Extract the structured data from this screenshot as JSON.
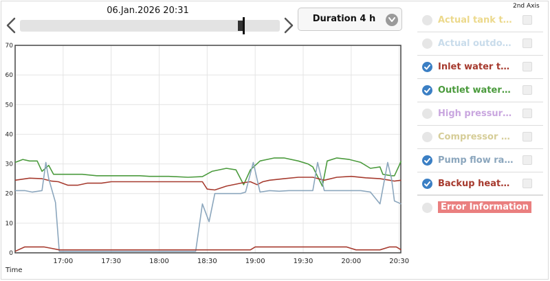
{
  "header": {
    "timestamp": "06.Jan.2026 20:31",
    "duration_label": "Duration 4 h"
  },
  "timeline": {
    "position": 0.86
  },
  "legend": {
    "axis_header": "2nd Axis",
    "items": [
      {
        "label": "Actual tank te...",
        "color": "#ecd98c",
        "checked": false
      },
      {
        "label": "Actual outdoo...",
        "color": "#c9dceb",
        "checked": false
      },
      {
        "label": "Inlet water te...",
        "color": "#a63a2e",
        "checked": true
      },
      {
        "label": "Outlet water t...",
        "color": "#4a9a3c",
        "checked": true
      },
      {
        "label": "High pressure ...",
        "color": "#c9a6df",
        "checked": false
      },
      {
        "label": "Compressor fr...",
        "color": "#d6cd98",
        "checked": false
      },
      {
        "label": "Pump flow rat...",
        "color": "#8ba6bd",
        "checked": true
      },
      {
        "label": "Backup heate...",
        "color": "#a63a2e",
        "checked": true
      }
    ],
    "error_label": "Error Information"
  },
  "chart_data": {
    "type": "line",
    "xlabel": "Time",
    "ylim": [
      0,
      70
    ],
    "yticks": [
      0,
      10,
      20,
      30,
      40,
      50,
      60,
      70
    ],
    "xlim": [
      16.5,
      20.5167
    ],
    "xticks": [
      {
        "value": 17.0,
        "label": "17:00"
      },
      {
        "value": 17.5,
        "label": "17:30"
      },
      {
        "value": 18.0,
        "label": "18:00"
      },
      {
        "value": 18.5,
        "label": "18:30"
      },
      {
        "value": 19.0,
        "label": "19:00"
      },
      {
        "value": 19.5,
        "label": "19:30"
      },
      {
        "value": 20.0,
        "label": "20:00"
      },
      {
        "value": 20.5,
        "label": "20:30"
      }
    ],
    "grid": true,
    "series": [
      {
        "name": "Outlet water t...",
        "color": "#4a9a3c",
        "points": [
          [
            16.5,
            30.5
          ],
          [
            16.58,
            31.5
          ],
          [
            16.65,
            31
          ],
          [
            16.73,
            31
          ],
          [
            16.78,
            27.5
          ],
          [
            16.85,
            29.5
          ],
          [
            16.9,
            26.5
          ],
          [
            17.0,
            26.5
          ],
          [
            17.2,
            26.5
          ],
          [
            17.35,
            26
          ],
          [
            17.8,
            26
          ],
          [
            17.9,
            25.8
          ],
          [
            18.1,
            25.8
          ],
          [
            18.3,
            25.5
          ],
          [
            18.45,
            25.7
          ],
          [
            18.55,
            27.5
          ],
          [
            18.7,
            28.5
          ],
          [
            18.8,
            28
          ],
          [
            18.88,
            23
          ],
          [
            18.95,
            28
          ],
          [
            19.05,
            31
          ],
          [
            19.2,
            32
          ],
          [
            19.3,
            32
          ],
          [
            19.45,
            31
          ],
          [
            19.55,
            30
          ],
          [
            19.6,
            29
          ],
          [
            19.7,
            22.5
          ],
          [
            19.75,
            31
          ],
          [
            19.85,
            32
          ],
          [
            19.98,
            31.5
          ],
          [
            20.1,
            30.5
          ],
          [
            20.2,
            28.5
          ],
          [
            20.3,
            29
          ],
          [
            20.33,
            26.5
          ],
          [
            20.42,
            26
          ],
          [
            20.45,
            26
          ],
          [
            20.5,
            29.5
          ],
          [
            20.52,
            31
          ]
        ]
      },
      {
        "name": "Inlet water te...",
        "color": "#a63a2e",
        "points": [
          [
            16.5,
            24.5
          ],
          [
            16.65,
            25.2
          ],
          [
            16.78,
            25
          ],
          [
            16.88,
            24.2
          ],
          [
            16.95,
            24
          ],
          [
            17.05,
            22.8
          ],
          [
            17.15,
            22.8
          ],
          [
            17.25,
            23.5
          ],
          [
            17.4,
            23.5
          ],
          [
            17.5,
            24
          ],
          [
            17.8,
            24
          ],
          [
            18.2,
            24
          ],
          [
            18.45,
            24
          ],
          [
            18.5,
            21.5
          ],
          [
            18.58,
            21.2
          ],
          [
            18.7,
            22.5
          ],
          [
            18.85,
            23.5
          ],
          [
            18.95,
            24
          ],
          [
            19.02,
            23
          ],
          [
            19.08,
            24
          ],
          [
            19.15,
            24.5
          ],
          [
            19.3,
            25
          ],
          [
            19.45,
            25.5
          ],
          [
            19.6,
            25.5
          ],
          [
            19.72,
            24.5
          ],
          [
            19.85,
            25.5
          ],
          [
            20.0,
            25.8
          ],
          [
            20.15,
            25.3
          ],
          [
            20.3,
            25
          ],
          [
            20.4,
            24.5
          ],
          [
            20.45,
            24.2
          ],
          [
            20.52,
            24.5
          ]
        ]
      },
      {
        "name": "Pump flow rat...",
        "color": "#8ba6bd",
        "points": [
          [
            16.5,
            21
          ],
          [
            16.6,
            21
          ],
          [
            16.68,
            20.5
          ],
          [
            16.78,
            21
          ],
          [
            16.82,
            30.5
          ],
          [
            16.85,
            25
          ],
          [
            16.92,
            17
          ],
          [
            16.96,
            0.5
          ],
          [
            17.1,
            0.5
          ],
          [
            17.5,
            0.5
          ],
          [
            17.8,
            0.5
          ],
          [
            18.2,
            0.5
          ],
          [
            18.38,
            0.5
          ],
          [
            18.45,
            16.5
          ],
          [
            18.52,
            10.5
          ],
          [
            18.58,
            20
          ],
          [
            18.7,
            20
          ],
          [
            18.78,
            20
          ],
          [
            18.85,
            20
          ],
          [
            18.9,
            20.5
          ],
          [
            18.98,
            30.5
          ],
          [
            19.05,
            20.5
          ],
          [
            19.15,
            21
          ],
          [
            19.25,
            20.8
          ],
          [
            19.35,
            21
          ],
          [
            19.5,
            21
          ],
          [
            19.6,
            21
          ],
          [
            19.65,
            30.5
          ],
          [
            19.72,
            21
          ],
          [
            19.85,
            21
          ],
          [
            20.0,
            21
          ],
          [
            20.1,
            21
          ],
          [
            20.2,
            20.5
          ],
          [
            20.3,
            16.5
          ],
          [
            20.38,
            30.5
          ],
          [
            20.42,
            25
          ],
          [
            20.45,
            17.5
          ],
          [
            20.52,
            16.5
          ]
        ]
      },
      {
        "name": "Backup heate...",
        "color": "#a63a2e",
        "points": [
          [
            16.5,
            0.5
          ],
          [
            16.6,
            2
          ],
          [
            16.7,
            2
          ],
          [
            16.8,
            2
          ],
          [
            16.88,
            1.5
          ],
          [
            16.96,
            1
          ],
          [
            17.2,
            1
          ],
          [
            17.6,
            1
          ],
          [
            18.0,
            1
          ],
          [
            18.5,
            1
          ],
          [
            18.95,
            1
          ],
          [
            19.0,
            2
          ],
          [
            19.3,
            2
          ],
          [
            19.6,
            2
          ],
          [
            19.95,
            2
          ],
          [
            20.05,
            1
          ],
          [
            20.3,
            1
          ],
          [
            20.4,
            2
          ],
          [
            20.47,
            2
          ],
          [
            20.52,
            1
          ]
        ]
      }
    ]
  }
}
